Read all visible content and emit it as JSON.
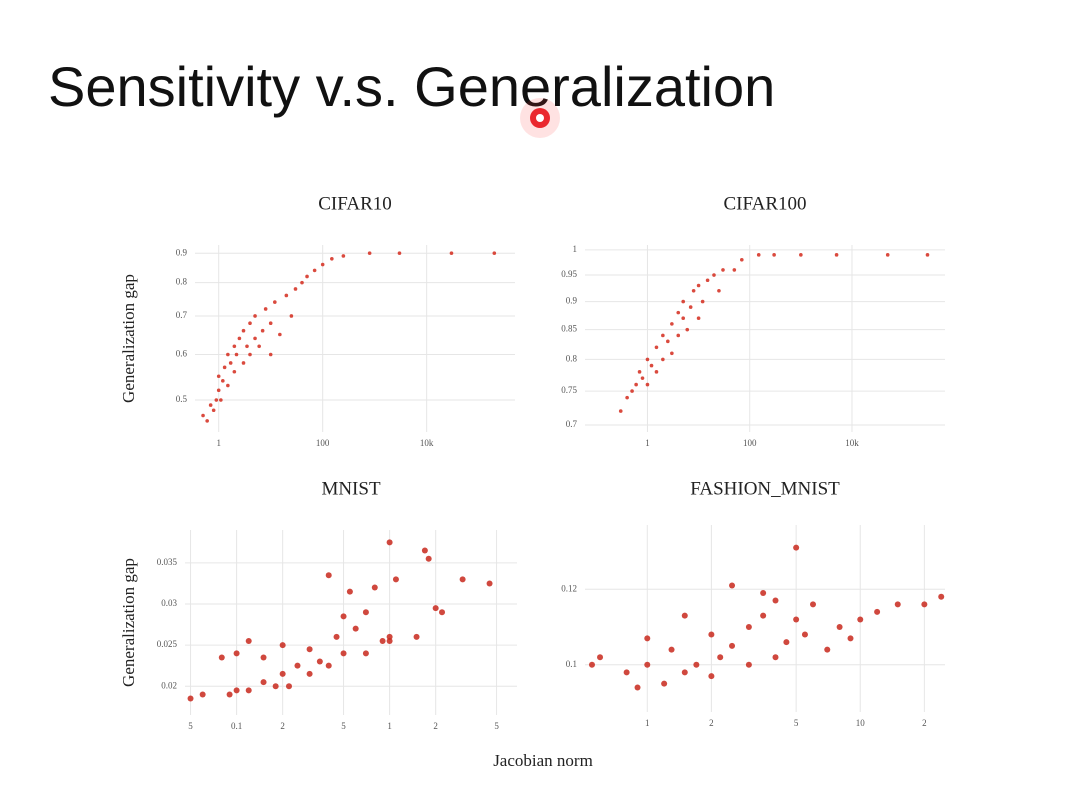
{
  "title": "Sensitivity v.s. Generalization",
  "xlabel": "Jacobian norm",
  "chart_data": [
    {
      "type": "scatter",
      "title": "CIFAR10",
      "ylabel": "Generalization gap",
      "xscale": "log",
      "yscale": "log",
      "grid": true,
      "xlim": [
        0.35,
        500000
      ],
      "ylim": [
        0.44,
        0.93
      ],
      "xticks": [
        1,
        100,
        {
          "value": 10000,
          "label": "10k"
        }
      ],
      "yticks": [
        0.5,
        0.6,
        0.7,
        0.8,
        0.9
      ],
      "series": [
        {
          "color": "#d42a1c",
          "x": [
            0.5,
            0.6,
            0.7,
            0.8,
            0.9,
            1,
            1,
            1.1,
            1.2,
            1.3,
            1.5,
            1.5,
            1.7,
            2,
            2,
            2.2,
            2.5,
            3,
            3,
            3.5,
            4,
            4,
            5,
            5,
            6,
            7,
            8,
            10,
            10,
            12,
            15,
            20,
            25,
            30,
            40,
            50,
            70,
            100,
            150,
            250,
            800,
            3000,
            30000,
            200000
          ],
          "values": [
            0.47,
            0.46,
            0.49,
            0.48,
            0.5,
            0.52,
            0.55,
            0.5,
            0.54,
            0.57,
            0.53,
            0.6,
            0.58,
            0.56,
            0.62,
            0.6,
            0.64,
            0.58,
            0.66,
            0.62,
            0.6,
            0.68,
            0.64,
            0.7,
            0.62,
            0.66,
            0.72,
            0.6,
            0.68,
            0.74,
            0.65,
            0.76,
            0.7,
            0.78,
            0.8,
            0.82,
            0.84,
            0.86,
            0.88,
            0.89,
            0.9,
            0.9,
            0.9,
            0.9
          ]
        }
      ]
    },
    {
      "type": "scatter",
      "title": "CIFAR100",
      "xscale": "log",
      "yscale": "log",
      "grid": true,
      "xlim": [
        0.06,
        660000
      ],
      "ylim": [
        0.69,
        1.01
      ],
      "xticks": [
        1,
        100,
        {
          "value": 10000,
          "label": "10k"
        }
      ],
      "yticks": [
        0.7,
        0.75,
        0.8,
        0.85,
        0.9,
        0.95,
        1
      ],
      "series": [
        {
          "color": "#d42a1c",
          "x": [
            0.3,
            0.4,
            0.5,
            0.6,
            0.7,
            0.8,
            1,
            1,
            1.2,
            1.5,
            1.5,
            2,
            2,
            2.5,
            3,
            3,
            4,
            4,
            5,
            5,
            6,
            7,
            8,
            10,
            10,
            12,
            15,
            20,
            25,
            30,
            50,
            70,
            150,
            300,
            1000,
            5000,
            50000,
            300000
          ],
          "values": [
            0.72,
            0.74,
            0.75,
            0.76,
            0.78,
            0.77,
            0.8,
            0.76,
            0.79,
            0.82,
            0.78,
            0.84,
            0.8,
            0.83,
            0.86,
            0.81,
            0.88,
            0.84,
            0.87,
            0.9,
            0.85,
            0.89,
            0.92,
            0.87,
            0.93,
            0.9,
            0.94,
            0.95,
            0.92,
            0.96,
            0.96,
            0.98,
            0.99,
            0.99,
            0.99,
            0.99,
            0.99,
            0.99
          ]
        }
      ]
    },
    {
      "type": "scatter",
      "title": "MNIST",
      "ylabel": "Generalization gap",
      "xscale": "log",
      "yscale": "linear",
      "grid": true,
      "xlim": [
        0.046,
        6.8
      ],
      "ylim": [
        0.0165,
        0.039
      ],
      "xticks": [
        {
          "value": 0.05,
          "label": "5"
        },
        0.1,
        {
          "value": 0.2,
          "label": "2"
        },
        {
          "value": 0.5,
          "label": "5"
        },
        1,
        2,
        5
      ],
      "yticks": [
        0.02,
        0.025,
        0.03,
        0.035
      ],
      "series": [
        {
          "color": "#c8281c",
          "x": [
            0.05,
            0.06,
            0.08,
            0.09,
            0.1,
            0.1,
            0.12,
            0.12,
            0.15,
            0.15,
            0.18,
            0.2,
            0.2,
            0.22,
            0.25,
            0.3,
            0.3,
            0.35,
            0.4,
            0.4,
            0.45,
            0.5,
            0.5,
            0.55,
            0.6,
            0.7,
            0.7,
            0.8,
            0.9,
            1,
            1,
            1,
            1.1,
            1.5,
            1.7,
            1.8,
            2,
            2.2,
            3,
            4.5
          ],
          "values": [
            0.0185,
            0.019,
            0.0235,
            0.019,
            0.0195,
            0.024,
            0.0195,
            0.0255,
            0.0205,
            0.0235,
            0.02,
            0.0215,
            0.025,
            0.02,
            0.0225,
            0.0215,
            0.0245,
            0.023,
            0.0225,
            0.0335,
            0.026,
            0.024,
            0.0285,
            0.0315,
            0.027,
            0.024,
            0.029,
            0.032,
            0.0255,
            0.0255,
            0.0375,
            0.026,
            0.033,
            0.026,
            0.0365,
            0.0355,
            0.0295,
            0.029,
            0.033,
            0.0325
          ]
        }
      ]
    },
    {
      "type": "scatter",
      "title": "FASHION_MNIST",
      "xscale": "log",
      "yscale": "linear",
      "grid": true,
      "xlim": [
        0.51,
        25
      ],
      "ylim": [
        0.0875,
        0.137
      ],
      "xticks": [
        1,
        2,
        5,
        10,
        {
          "value": 20,
          "label": "2"
        }
      ],
      "yticks": [
        0.1,
        0.12
      ],
      "series": [
        {
          "color": "#c8281c",
          "x": [
            0.55,
            0.6,
            0.8,
            0.9,
            1,
            1,
            1.2,
            1.3,
            1.5,
            1.5,
            1.7,
            2,
            2,
            2.2,
            2.5,
            2.5,
            3,
            3,
            3.5,
            3.5,
            4,
            4,
            4.5,
            5,
            5,
            5.5,
            6,
            7,
            8,
            9,
            10,
            12,
            15,
            20,
            24
          ],
          "values": [
            0.1,
            0.102,
            0.098,
            0.094,
            0.1,
            0.107,
            0.095,
            0.104,
            0.098,
            0.113,
            0.1,
            0.097,
            0.108,
            0.102,
            0.121,
            0.105,
            0.1,
            0.11,
            0.113,
            0.119,
            0.102,
            0.117,
            0.106,
            0.131,
            0.112,
            0.108,
            0.116,
            0.104,
            0.11,
            0.107,
            0.112,
            0.114,
            0.116,
            0.116,
            0.118
          ]
        }
      ]
    }
  ]
}
